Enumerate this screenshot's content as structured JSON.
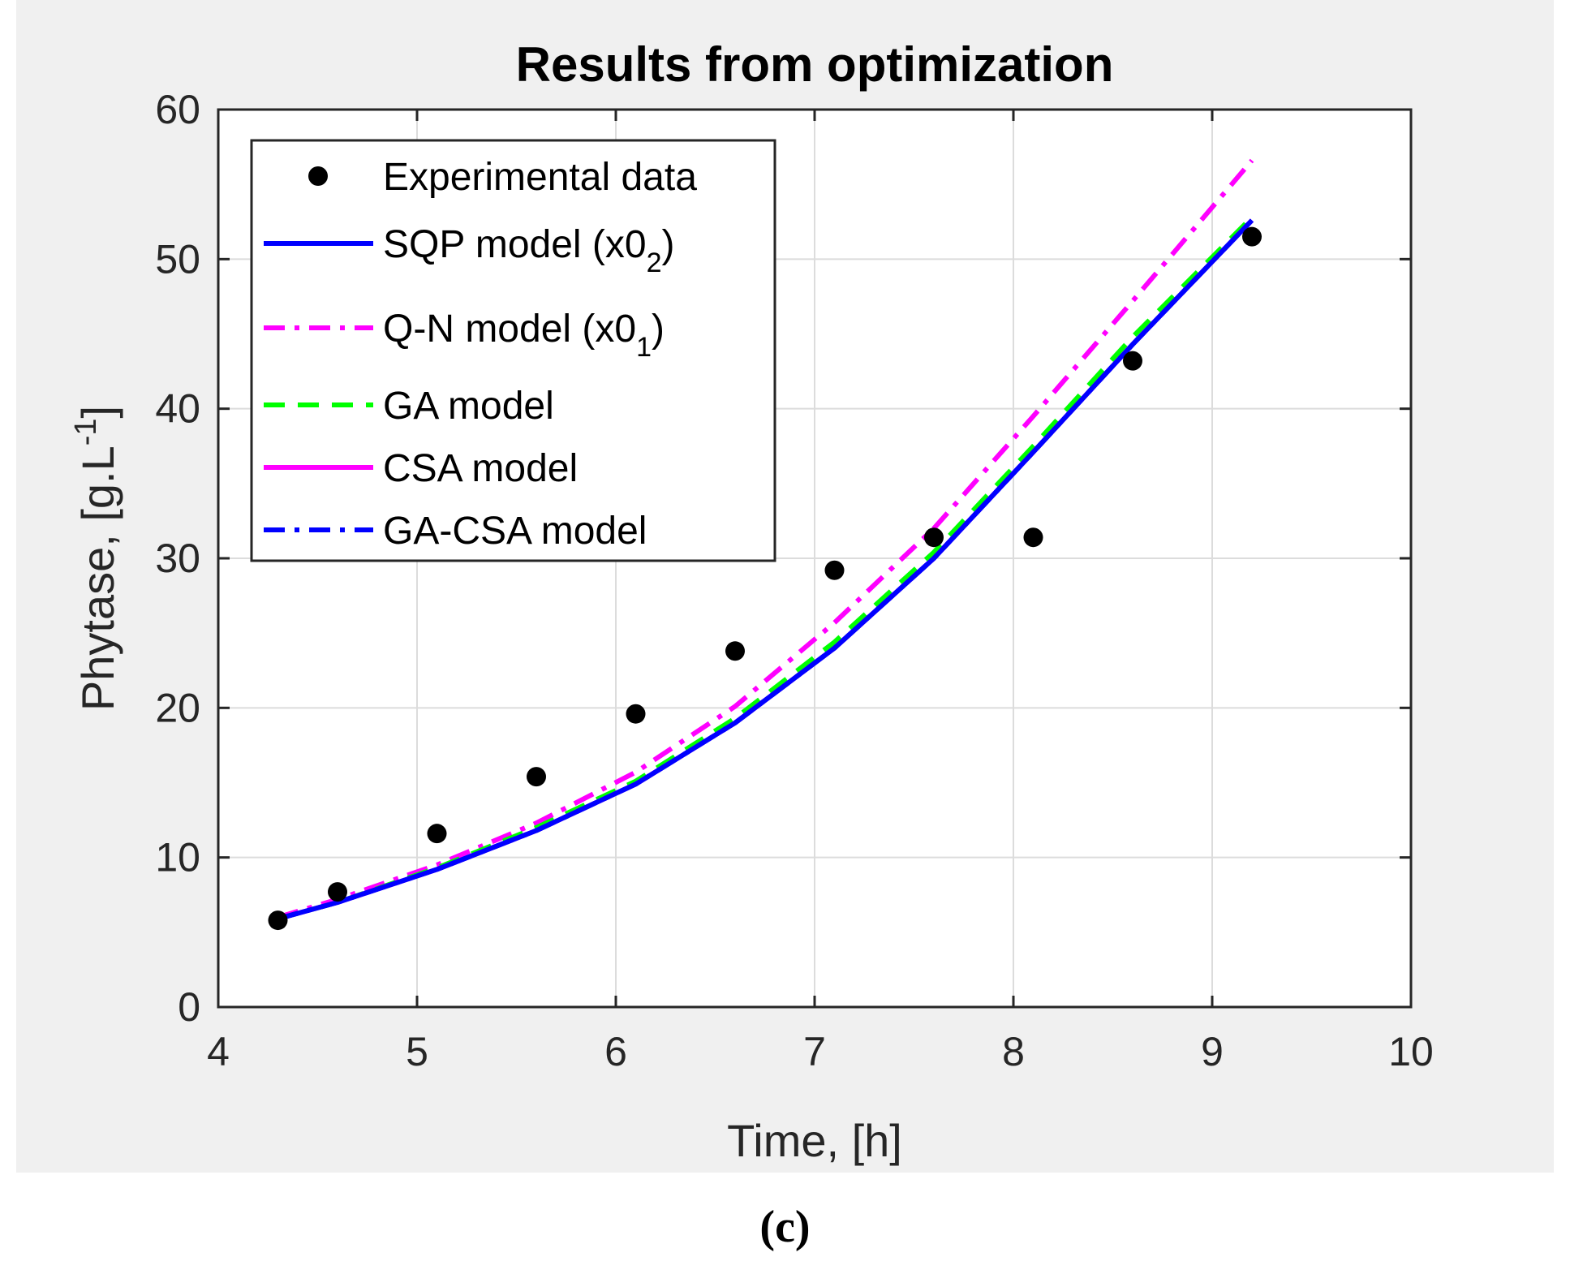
{
  "panel_label": "(c)",
  "chart_data": {
    "type": "line",
    "title": "Results from optimization",
    "xlabel": "Time, [h]",
    "ylabel": "Phytase, [g.L",
    "ylabel_sup": "-1",
    "ylabel_end": "]",
    "xlim": [
      4,
      10
    ],
    "ylim": [
      0,
      60
    ],
    "xticks": [
      4,
      5,
      6,
      7,
      8,
      9,
      10
    ],
    "yticks": [
      0,
      10,
      20,
      30,
      40,
      50,
      60
    ],
    "grid": true,
    "legend_position": "top-left",
    "experimental": {
      "name": "Experimental data",
      "color": "#000000",
      "x": [
        4.3,
        4.6,
        5.1,
        5.6,
        6.1,
        6.6,
        7.1,
        7.6,
        8.1,
        8.6,
        9.2
      ],
      "y": [
        5.8,
        7.7,
        11.6,
        15.4,
        19.6,
        23.8,
        29.2,
        31.4,
        31.4,
        43.2,
        51.5
      ]
    },
    "series": [
      {
        "name": "SQP model (x0",
        "sub": "2",
        "name_end": ")",
        "color": "#0000ff",
        "style": "solid",
        "x": [
          4.3,
          4.6,
          5.1,
          5.6,
          6.1,
          6.6,
          7.1,
          7.6,
          8.1,
          8.6,
          9.2
        ],
        "y": [
          5.9,
          7.0,
          9.2,
          11.8,
          14.9,
          19.0,
          24.0,
          30.0,
          37.1,
          44.3,
          52.6
        ]
      },
      {
        "name": "Q-N model (x0",
        "sub": "1",
        "name_end": ")",
        "color": "#ff00ff",
        "style": "dashdot",
        "x": [
          4.3,
          4.6,
          5.1,
          5.6,
          6.1,
          6.6,
          7.1,
          7.6,
          8.1,
          8.6,
          9.2
        ],
        "y": [
          6.0,
          7.2,
          9.5,
          12.3,
          15.7,
          20.1,
          25.7,
          32.0,
          39.5,
          47.2,
          56.6
        ]
      },
      {
        "name": "GA model",
        "color": "#00ff00",
        "style": "dashed",
        "x": [
          4.3,
          4.6,
          5.1,
          5.6,
          6.1,
          6.6,
          7.1,
          7.6,
          8.1,
          8.6,
          9.2
        ],
        "y": [
          5.9,
          7.0,
          9.3,
          12.0,
          15.1,
          19.3,
          24.4,
          30.4,
          37.5,
          44.8,
          52.8
        ]
      },
      {
        "name": "CSA model",
        "color": "#ff00ff",
        "style": "solid",
        "x": [
          4.3,
          4.6,
          5.1,
          5.6,
          6.1,
          6.6,
          7.1,
          7.6,
          8.1,
          8.6,
          9.2
        ],
        "y": [
          5.9,
          7.0,
          9.2,
          11.8,
          14.9,
          19.0,
          24.0,
          30.0,
          37.1,
          44.3,
          52.6
        ]
      },
      {
        "name": "GA-CSA model",
        "color": "#0000ff",
        "style": "dashdot",
        "x": [
          4.3,
          4.6,
          5.1,
          5.6,
          6.1,
          6.6,
          7.1,
          7.6,
          8.1,
          8.6,
          9.2
        ],
        "y": [
          5.9,
          7.0,
          9.2,
          11.8,
          14.9,
          19.0,
          24.0,
          30.0,
          37.1,
          44.3,
          52.6
        ]
      }
    ]
  }
}
